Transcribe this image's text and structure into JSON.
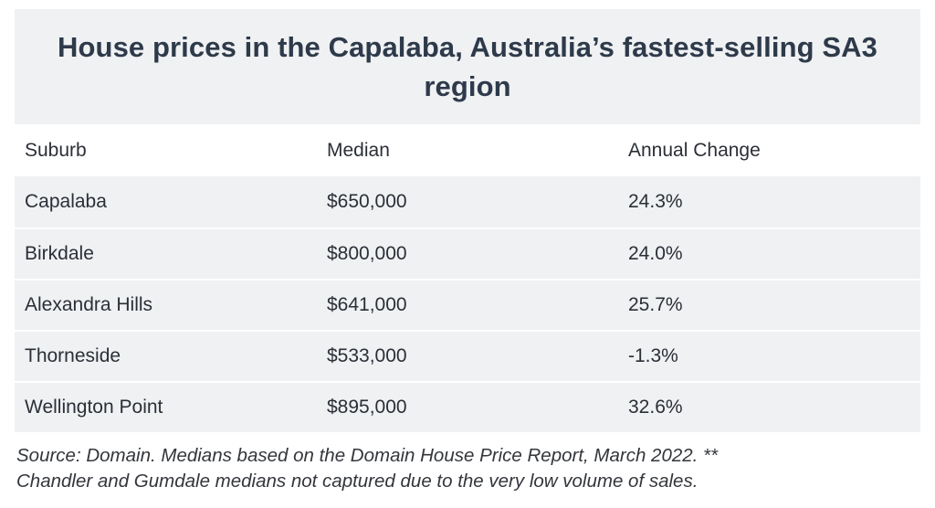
{
  "title": "House prices in the Capalaba, Australia’s fastest-selling SA3 region",
  "table": {
    "headers": [
      "Suburb",
      "Median",
      "Annual Change"
    ],
    "rows": [
      [
        "Capalaba",
        "$650,000",
        "24.3%"
      ],
      [
        "Birkdale",
        "$800,000",
        "24.0%"
      ],
      [
        "Alexandra Hills",
        "$641,000",
        "25.7%"
      ],
      [
        "Thorneside",
        "$533,000",
        "-1.3%"
      ],
      [
        "Wellington Point",
        "$895,000",
        "32.6%"
      ]
    ]
  },
  "source_note_line1": "Source: Domain. Medians based on the Domain House Price Report, March 2022. **",
  "source_note_line2": "Chandler and Gumdale medians not captured due to the very low volume of sales.",
  "colors": {
    "title_band": "#eff1f3",
    "row_band": "#eff1f3",
    "title_text": "#2e3a4a",
    "body_text": "#2b2f36"
  }
}
